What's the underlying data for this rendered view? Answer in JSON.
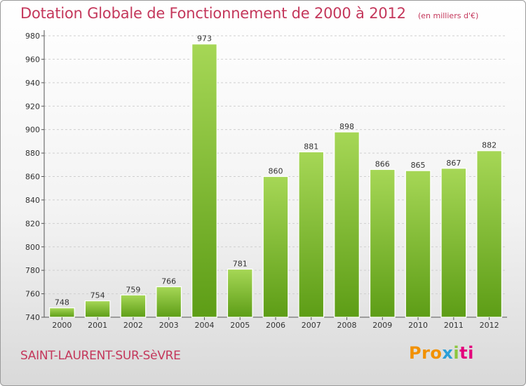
{
  "title": "Dotation Globale de Fonctionnement de 2000 à 2012",
  "subtitle": "(en milliers d'€)",
  "commune": "SAINT-LAURENT-SUR-SèVRE",
  "logo": {
    "parts": [
      "Pro",
      "x",
      "i",
      "ti"
    ],
    "colors": [
      "#f29100",
      "#2a9fd8",
      "#8cc63f",
      "#e4007c"
    ]
  },
  "colors": {
    "title": "#c4375b",
    "bar_light": "#a6d756",
    "bar_dark": "#5d9d16",
    "grid": "#cfcfcf"
  },
  "chart_data": {
    "type": "bar",
    "title": "Dotation Globale de Fonctionnement de 2000 à 2012",
    "subtitle": "(en milliers d'€)",
    "categories": [
      "2000",
      "2001",
      "2002",
      "2003",
      "2004",
      "2005",
      "2006",
      "2007",
      "2008",
      "2009",
      "2010",
      "2011",
      "2012"
    ],
    "values": [
      748,
      754,
      759,
      766,
      973,
      781,
      860,
      881,
      898,
      866,
      865,
      867,
      882
    ],
    "ylim": [
      740,
      980
    ],
    "yticks": [
      740,
      760,
      780,
      800,
      820,
      840,
      860,
      880,
      900,
      920,
      940,
      960,
      980
    ],
    "grid": true,
    "data_labels": true
  }
}
